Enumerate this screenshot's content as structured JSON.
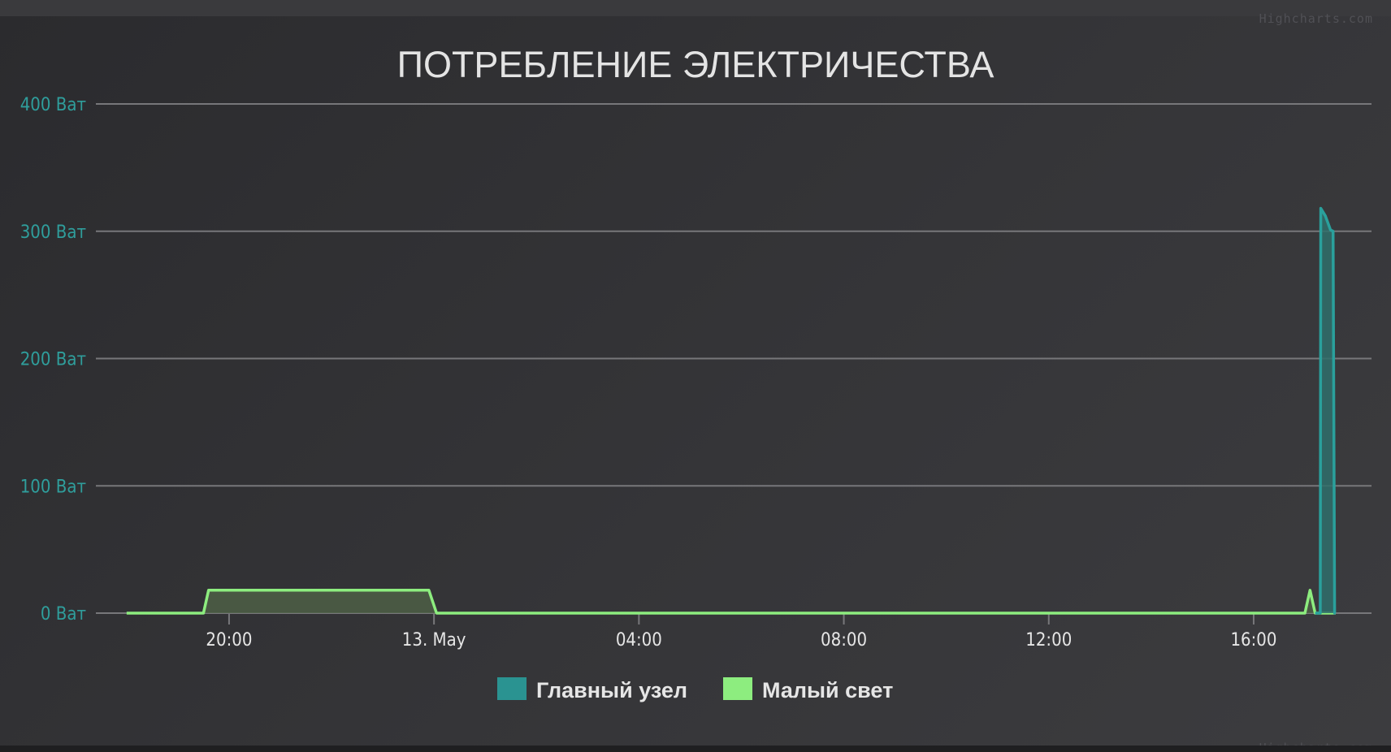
{
  "credit_text": "Highcharts.com",
  "chart_data": {
    "type": "area",
    "title": "ПОТРЕБЛЕНИЕ ЭЛЕКТРИЧЕСТВА",
    "y_axis": {
      "min": 0,
      "max": 400,
      "tick_values": [
        0,
        100,
        200,
        300,
        400
      ],
      "tick_labels": [
        "0 Ват",
        "100 Ват",
        "200 Ват",
        "300 Ват",
        "400 Ват"
      ]
    },
    "x_axis": {
      "unit": "hours",
      "min": 17.4,
      "max": 42.3,
      "tick_values": [
        20,
        24,
        28,
        32,
        36,
        40
      ],
      "tick_labels": [
        "20:00",
        "13. May",
        "04:00",
        "08:00",
        "12:00",
        "16:00"
      ]
    },
    "grid": true,
    "legend_position": "bottom-center",
    "series": [
      {
        "name": "Главный узел",
        "color": "#2a9391",
        "line_color": "#2aa09c",
        "fill_color": "#2f6f6b",
        "points": [
          [
            41.2,
            0
          ],
          [
            41.3,
            0
          ],
          [
            41.31,
            318
          ],
          [
            41.4,
            312
          ],
          [
            41.5,
            301
          ],
          [
            41.55,
            300
          ],
          [
            41.58,
            0
          ],
          [
            41.6,
            0
          ]
        ]
      },
      {
        "name": "Малый свет",
        "color": "#8ded7f",
        "line_color": "#8ded7f",
        "fill_color": "#4e5f45",
        "points": [
          [
            18.0,
            0
          ],
          [
            19.5,
            0
          ],
          [
            19.6,
            18
          ],
          [
            23.9,
            18
          ],
          [
            24.05,
            0
          ],
          [
            41.0,
            0
          ],
          [
            41.1,
            18
          ],
          [
            41.2,
            0
          ],
          [
            41.6,
            0
          ]
        ]
      }
    ]
  }
}
